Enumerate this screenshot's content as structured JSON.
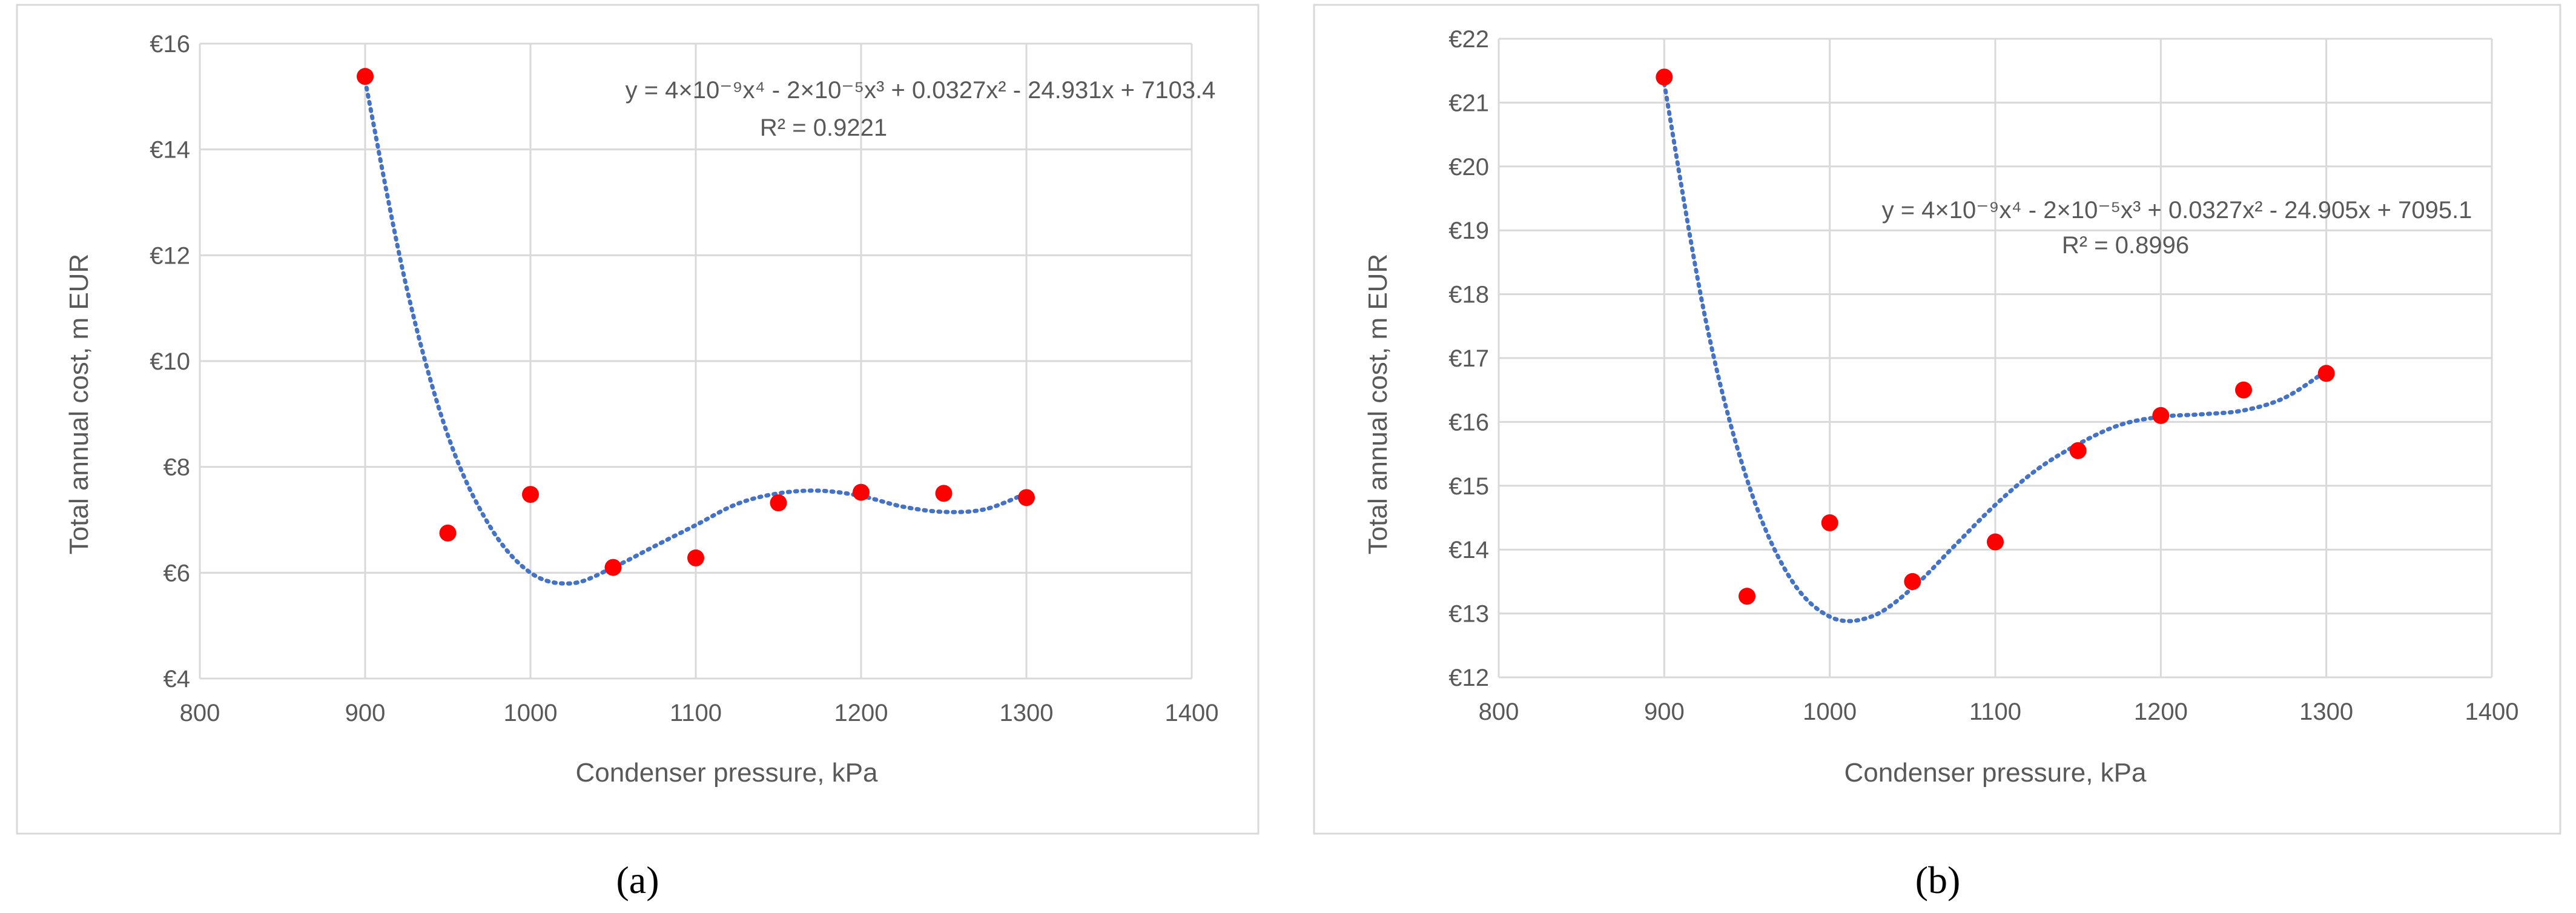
{
  "chart_data": [
    {
      "type": "scatter",
      "panel_label": "(a)",
      "xlabel": "Condenser pressure, kPa",
      "ylabel": "Total annual cost, m EUR",
      "xlim": [
        800,
        1400
      ],
      "ylim": [
        4,
        16
      ],
      "x_ticks": [
        "800",
        "900",
        "1000",
        "1100",
        "1200",
        "1300",
        "1400"
      ],
      "y_ticks": [
        "€4",
        "€6",
        "€8",
        "€10",
        "€12",
        "€14",
        "€16"
      ],
      "grid": true,
      "marker_color": "#ff0000",
      "trend_color": "#4472c4",
      "points": {
        "x": [
          900,
          950,
          1000,
          1050,
          1100,
          1150,
          1200,
          1250,
          1300
        ],
        "y": [
          15.38,
          6.75,
          7.48,
          6.1,
          6.28,
          7.32,
          7.52,
          7.5,
          7.42
        ]
      },
      "trendline": {
        "type": "polynomial-4",
        "equation": "y = 4×10⁻⁹x⁴ - 2×10⁻⁵x³ + 0.0327x² - 24.931x + 7103.4",
        "r_squared": "R² = 0.9221",
        "x": [
          900,
          925,
          950,
          975,
          1000,
          1025,
          1050,
          1075,
          1100,
          1125,
          1150,
          1175,
          1200,
          1225,
          1250,
          1275,
          1300
        ],
        "y": [
          15.3,
          11.4,
          8.6,
          6.9,
          6.0,
          5.8,
          6.1,
          6.5,
          6.9,
          7.3,
          7.5,
          7.55,
          7.45,
          7.25,
          7.15,
          7.2,
          7.5
        ]
      }
    },
    {
      "type": "scatter",
      "panel_label": "(b)",
      "xlabel": "Condenser pressure, kPa",
      "ylabel": "Total annual cost, m EUR",
      "xlim": [
        800,
        1400
      ],
      "ylim": [
        12,
        22
      ],
      "x_ticks": [
        "800",
        "900",
        "1000",
        "1100",
        "1200",
        "1300",
        "1400"
      ],
      "y_ticks": [
        "€12",
        "€13",
        "€14",
        "€15",
        "€16",
        "€17",
        "€18",
        "€19",
        "€20",
        "€21",
        "€22"
      ],
      "grid": true,
      "marker_color": "#ff0000",
      "trend_color": "#4472c4",
      "points": {
        "x": [
          900,
          950,
          1000,
          1050,
          1100,
          1150,
          1200,
          1250,
          1300
        ],
        "y": [
          21.4,
          13.27,
          14.42,
          13.5,
          14.12,
          15.55,
          16.1,
          16.5,
          16.76
        ]
      },
      "trendline": {
        "type": "polynomial-4",
        "equation": "y = 4×10⁻⁹x⁴ - 2×10⁻⁵x³ + 0.0327x² - 24.905x + 7095.1",
        "r_squared": "R² = 0.8996",
        "x": [
          900,
          925,
          950,
          975,
          1000,
          1025,
          1050,
          1075,
          1100,
          1125,
          1150,
          1175,
          1200,
          1225,
          1250,
          1275,
          1300
        ],
        "y": [
          21.3,
          17.6,
          15.1,
          13.6,
          12.95,
          12.95,
          13.4,
          14.05,
          14.7,
          15.25,
          15.65,
          15.95,
          16.08,
          16.12,
          16.18,
          16.38,
          16.8
        ]
      }
    }
  ]
}
